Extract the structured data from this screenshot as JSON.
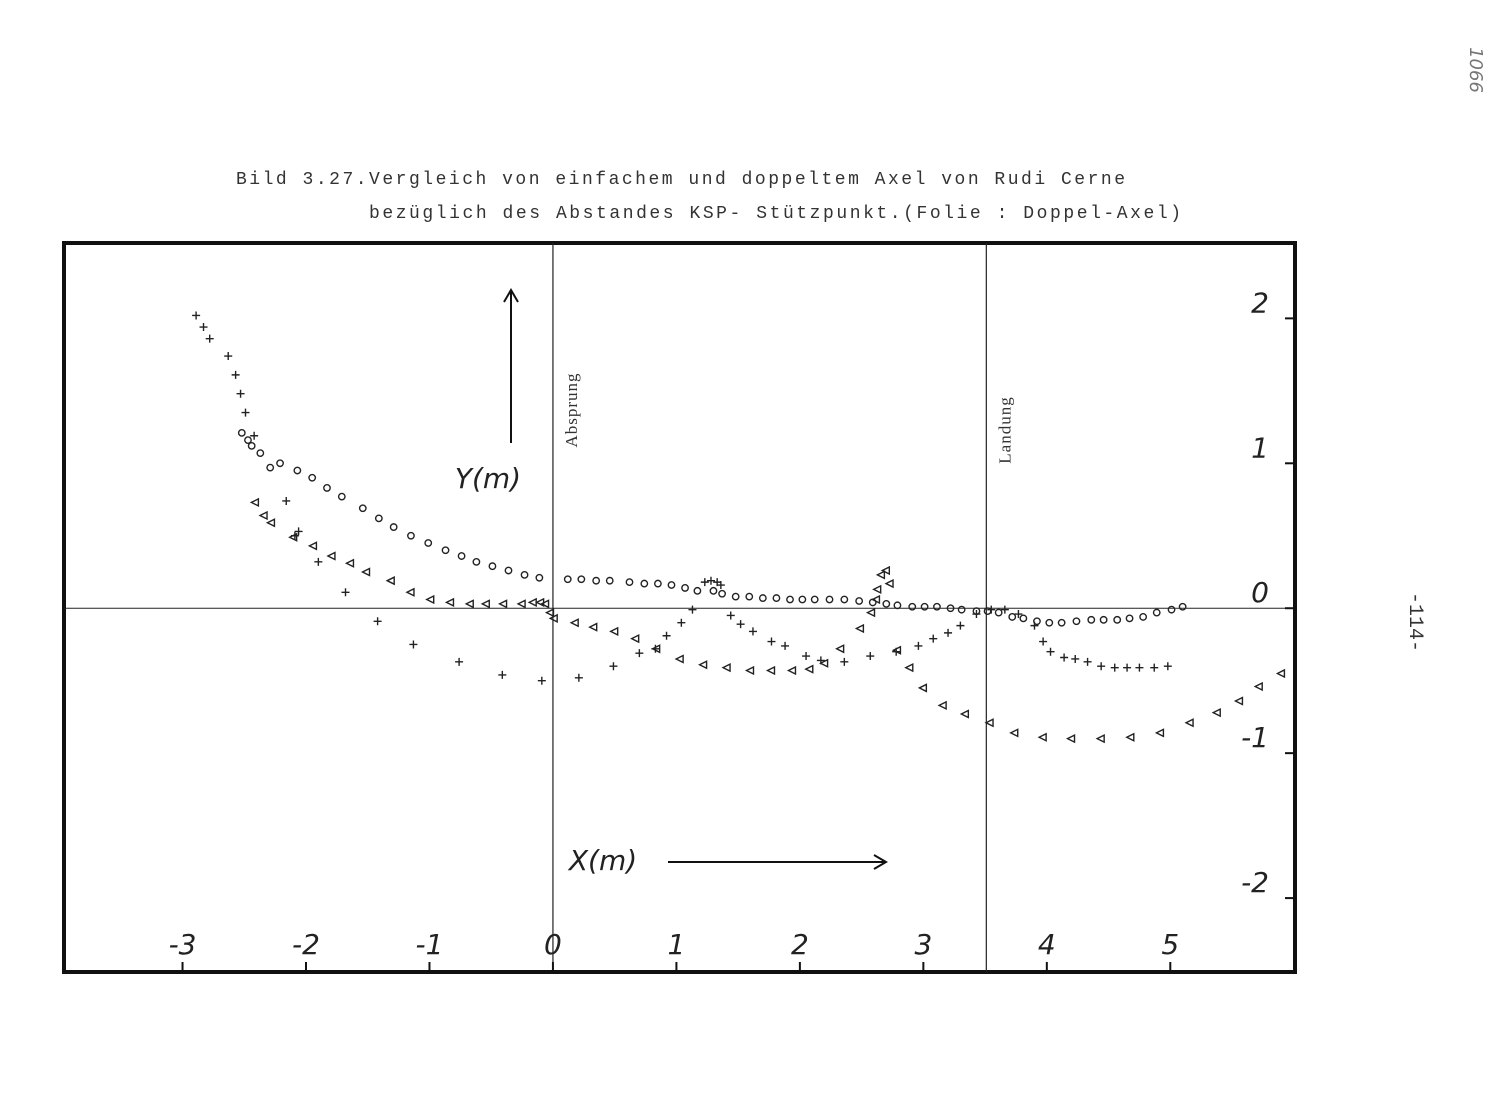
{
  "chart_data": {
    "type": "scatter",
    "title": "Bild 3.27.Vergleich von einfachem und doppeltem Axel von Rudi Cerne",
    "subtitle": "bezüglich des Abstandes KSP- Stützpunkt.(Folie : Doppel-Axel)",
    "xlabel": "X(m)",
    "ylabel": "Y(m)",
    "xlim": [
      -3.96,
      6.01
    ],
    "ylim": [
      -2.51,
      2.52
    ],
    "xticks": [
      -3,
      -2,
      -1,
      0,
      1,
      2,
      3,
      4,
      5
    ],
    "yticks": [
      -2,
      -1,
      0,
      1,
      2
    ],
    "vlines": [
      {
        "x": 0,
        "label": "Absprung"
      },
      {
        "x": 3.51,
        "label": "Landung"
      }
    ],
    "page_number": "-114-",
    "handwritten_note": "1066",
    "series": [
      {
        "marker": "circle",
        "color": "#222222",
        "x": [
          -2.52,
          -2.47,
          -2.44,
          -2.37,
          -2.29,
          -2.21,
          -2.07,
          -1.95,
          -1.83,
          -1.71,
          -1.54,
          -1.41,
          -1.29,
          -1.15,
          -1.01,
          -0.87,
          -0.74,
          -0.62,
          -0.49,
          -0.36,
          -0.23,
          -0.11,
          0.12,
          0.23,
          0.35,
          0.46,
          0.62,
          0.74,
          0.85,
          0.96,
          1.07,
          1.17,
          1.3,
          1.37,
          1.48,
          1.59,
          1.7,
          1.81,
          1.92,
          2.02,
          2.12,
          2.24,
          2.36,
          2.48,
          2.59,
          2.7,
          2.79,
          2.91,
          3.01,
          3.11,
          3.22,
          3.31,
          3.43,
          3.52,
          3.61,
          3.72,
          3.81,
          3.92,
          4.02,
          4.12,
          4.24,
          4.36,
          4.46,
          4.57,
          4.67,
          4.78,
          4.89,
          5.01,
          5.1
        ],
        "values": [
          1.21,
          1.16,
          1.12,
          1.07,
          0.97,
          1.0,
          0.95,
          0.9,
          0.83,
          0.77,
          0.69,
          0.62,
          0.56,
          0.5,
          0.45,
          0.4,
          0.36,
          0.32,
          0.29,
          0.26,
          0.23,
          0.21,
          0.2,
          0.2,
          0.19,
          0.19,
          0.18,
          0.17,
          0.17,
          0.16,
          0.14,
          0.12,
          0.12,
          0.1,
          0.08,
          0.08,
          0.07,
          0.07,
          0.06,
          0.06,
          0.06,
          0.06,
          0.06,
          0.05,
          0.04,
          0.03,
          0.02,
          0.01,
          0.01,
          0.01,
          0.0,
          -0.01,
          -0.02,
          -0.02,
          -0.03,
          -0.06,
          -0.07,
          -0.09,
          -0.1,
          -0.1,
          -0.09,
          -0.08,
          -0.08,
          -0.08,
          -0.07,
          -0.06,
          -0.03,
          -0.01,
          0.01
        ]
      },
      {
        "marker": "plus",
        "color": "#222222",
        "x": [
          -2.89,
          -2.83,
          -2.78,
          -2.63,
          -2.57,
          -2.53,
          -2.49,
          -2.42,
          -2.16,
          -2.06,
          -2.09,
          -1.9,
          -1.68,
          -1.42,
          -1.13,
          -0.76,
          -0.41,
          -0.09,
          0.21,
          0.49,
          0.7,
          0.83,
          0.92,
          1.04,
          1.13,
          1.23,
          1.28,
          1.33,
          1.36,
          1.44,
          1.52,
          1.62,
          1.77,
          1.88,
          2.05,
          2.17,
          2.36,
          2.57,
          2.78,
          2.96,
          3.08,
          3.2,
          3.3,
          3.43,
          3.55,
          3.66,
          3.77,
          3.9,
          3.97,
          4.03,
          4.14,
          4.23,
          4.33,
          4.44,
          4.55,
          4.65,
          4.75,
          4.87,
          4.98
        ],
        "values": [
          2.02,
          1.94,
          1.86,
          1.74,
          1.61,
          1.48,
          1.35,
          1.19,
          0.74,
          0.53,
          0.5,
          0.32,
          0.11,
          -0.09,
          -0.25,
          -0.37,
          -0.46,
          -0.5,
          -0.48,
          -0.4,
          -0.31,
          -0.28,
          -0.19,
          -0.1,
          -0.01,
          0.18,
          0.19,
          0.18,
          0.16,
          -0.05,
          -0.11,
          -0.16,
          -0.23,
          -0.26,
          -0.33,
          -0.36,
          -0.37,
          -0.33,
          -0.3,
          -0.26,
          -0.21,
          -0.17,
          -0.12,
          -0.04,
          -0.01,
          -0.01,
          -0.04,
          -0.12,
          -0.23,
          -0.3,
          -0.34,
          -0.35,
          -0.37,
          -0.4,
          -0.41,
          -0.41,
          -0.41,
          -0.41,
          -0.4
        ]
      },
      {
        "marker": "triangle",
        "color": "#222222",
        "x": [
          -2.41,
          -2.34,
          -2.28,
          -2.1,
          -1.94,
          -1.79,
          -1.64,
          -1.51,
          -1.31,
          -1.15,
          -0.99,
          -0.83,
          -0.67,
          -0.54,
          -0.4,
          -0.25,
          -0.16,
          -0.1,
          -0.06,
          -0.02,
          0.01,
          0.18,
          0.33,
          0.5,
          0.67,
          0.84,
          1.03,
          1.22,
          1.41,
          1.6,
          1.77,
          1.94,
          2.08,
          2.2,
          2.33,
          2.49,
          2.58,
          2.62,
          2.63,
          2.66,
          2.7,
          2.73,
          2.79,
          2.89,
          3.0,
          3.16,
          3.34,
          3.54,
          3.74,
          3.97,
          4.2,
          4.44,
          4.68,
          4.92,
          5.16,
          5.38,
          5.56,
          5.72,
          5.9
        ],
        "values": [
          0.73,
          0.64,
          0.59,
          0.49,
          0.43,
          0.36,
          0.31,
          0.25,
          0.19,
          0.11,
          0.06,
          0.04,
          0.03,
          0.03,
          0.03,
          0.03,
          0.04,
          0.04,
          0.03,
          -0.03,
          -0.07,
          -0.1,
          -0.13,
          -0.16,
          -0.21,
          -0.28,
          -0.35,
          -0.39,
          -0.41,
          -0.43,
          -0.43,
          -0.43,
          -0.42,
          -0.38,
          -0.28,
          -0.14,
          -0.03,
          0.06,
          0.13,
          0.23,
          0.26,
          0.17,
          -0.29,
          -0.41,
          -0.55,
          -0.67,
          -0.73,
          -0.79,
          -0.86,
          -0.89,
          -0.9,
          -0.9,
          -0.89,
          -0.86,
          -0.79,
          -0.72,
          -0.64,
          -0.54,
          -0.45
        ]
      }
    ]
  }
}
